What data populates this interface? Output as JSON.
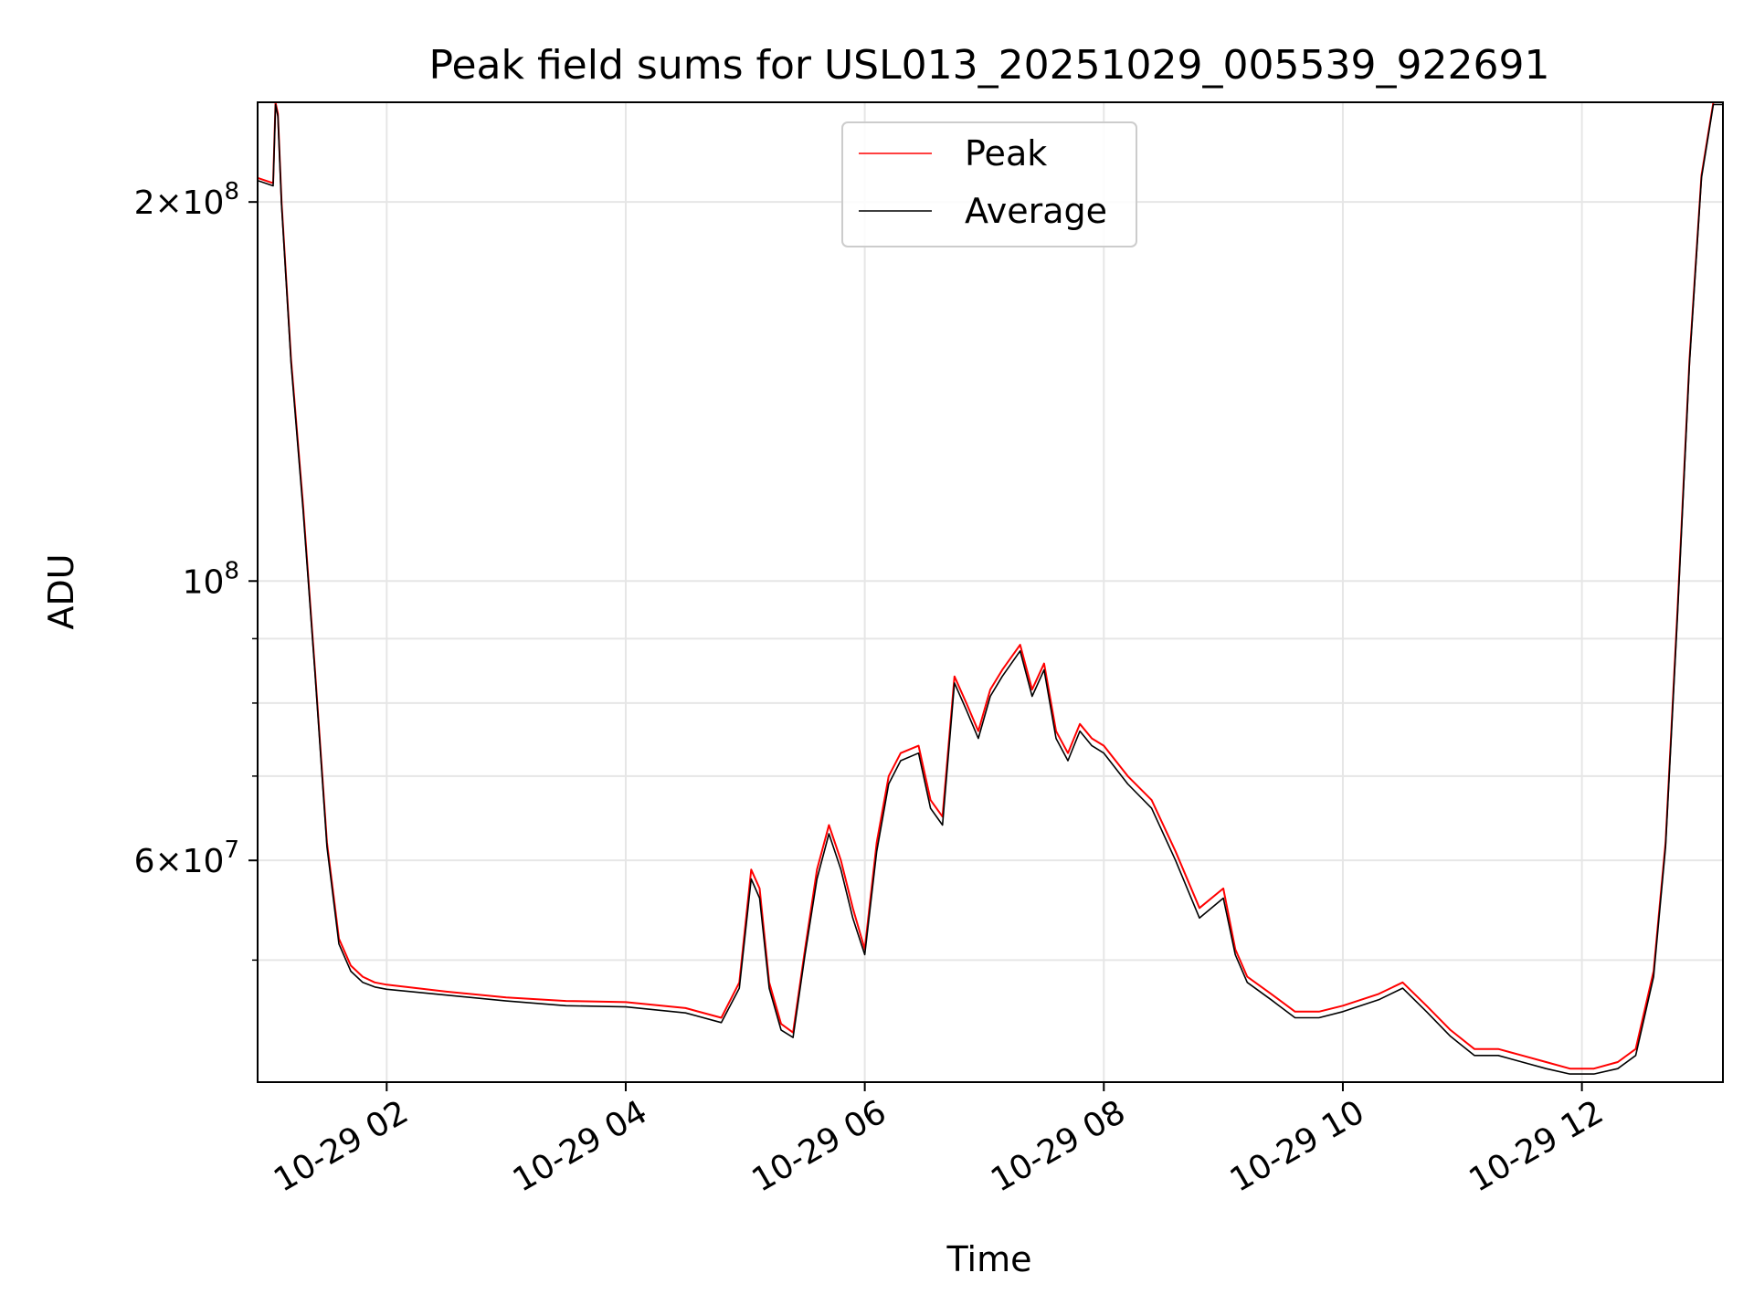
{
  "chart_data": {
    "type": "line",
    "title": "Peak field sums for USL013_20251029_005539_922691",
    "xlabel": "Time",
    "ylabel": "ADU",
    "yscale": "log",
    "grid": true,
    "legend_position": "top-center",
    "xlim_hours": [
      0.92,
      13.18
    ],
    "ylim": [
      40000000,
      240000000
    ],
    "x_ticks": [
      {
        "hour": 2,
        "label": "10-29 02"
      },
      {
        "hour": 4,
        "label": "10-29 04"
      },
      {
        "hour": 6,
        "label": "10-29 06"
      },
      {
        "hour": 8,
        "label": "10-29 08"
      },
      {
        "hour": 10,
        "label": "10-29 10"
      },
      {
        "hour": 12,
        "label": "10-29 12"
      }
    ],
    "y_major_ticks": [
      {
        "value": 60000000,
        "mantissa": "6",
        "exponent": "7"
      },
      {
        "value": 100000000,
        "mantissa": "",
        "exponent": "8"
      },
      {
        "value": 200000000,
        "mantissa": "2",
        "exponent": "8"
      }
    ],
    "y_minor_gridlines": [
      50000000,
      70000000,
      80000000,
      90000000
    ],
    "series": [
      {
        "name": "Peak",
        "color": "#ff0000",
        "x_hours": [
          0.92,
          1.05,
          1.07,
          1.09,
          1.12,
          1.2,
          1.3,
          1.4,
          1.5,
          1.6,
          1.7,
          1.8,
          1.9,
          2.0,
          2.5,
          3.0,
          3.5,
          4.0,
          4.5,
          4.8,
          4.95,
          5.05,
          5.12,
          5.2,
          5.3,
          5.4,
          5.5,
          5.6,
          5.7,
          5.8,
          5.9,
          6.0,
          6.1,
          6.2,
          6.3,
          6.45,
          6.55,
          6.65,
          6.75,
          6.85,
          6.95,
          7.05,
          7.15,
          7.3,
          7.4,
          7.5,
          7.6,
          7.7,
          7.8,
          7.9,
          8.0,
          8.2,
          8.4,
          8.6,
          8.8,
          9.0,
          9.1,
          9.2,
          9.4,
          9.6,
          9.8,
          10.0,
          10.3,
          10.5,
          10.7,
          10.9,
          11.1,
          11.3,
          11.5,
          11.7,
          11.9,
          12.1,
          12.3,
          12.45,
          12.6,
          12.7,
          12.8,
          12.9,
          13.0,
          13.1,
          13.18
        ],
        "values": [
          209000000,
          207000000,
          240000000,
          235000000,
          200000000,
          150000000,
          115000000,
          85000000,
          62000000,
          52000000,
          49500000,
          48500000,
          48000000,
          47800000,
          47200000,
          46700000,
          46400000,
          46300000,
          45800000,
          45000000,
          48000000,
          59000000,
          57000000,
          48000000,
          44500000,
          43800000,
          51000000,
          59000000,
          64000000,
          60000000,
          55000000,
          51000000,
          62000000,
          70000000,
          73000000,
          74000000,
          67000000,
          65000000,
          84000000,
          80000000,
          76000000,
          82000000,
          85000000,
          89000000,
          82000000,
          86000000,
          76000000,
          73000000,
          77000000,
          75000000,
          74000000,
          70000000,
          67000000,
          61000000,
          55000000,
          57000000,
          51000000,
          48500000,
          47000000,
          45500000,
          45500000,
          46000000,
          47000000,
          48000000,
          46000000,
          44000000,
          42500000,
          42500000,
          42000000,
          41500000,
          41000000,
          41000000,
          41500000,
          42500000,
          49000000,
          62000000,
          95000000,
          150000000,
          210000000,
          240000000,
          240000000
        ]
      },
      {
        "name": "Average",
        "color": "#000000",
        "x_hours": [
          0.92,
          1.05,
          1.07,
          1.09,
          1.12,
          1.2,
          1.3,
          1.4,
          1.5,
          1.6,
          1.7,
          1.8,
          1.9,
          2.0,
          2.5,
          3.0,
          3.5,
          4.0,
          4.5,
          4.8,
          4.95,
          5.05,
          5.12,
          5.2,
          5.3,
          5.4,
          5.5,
          5.6,
          5.7,
          5.8,
          5.9,
          6.0,
          6.1,
          6.2,
          6.3,
          6.45,
          6.55,
          6.65,
          6.75,
          6.85,
          6.95,
          7.05,
          7.15,
          7.3,
          7.4,
          7.5,
          7.6,
          7.7,
          7.8,
          7.9,
          8.0,
          8.2,
          8.4,
          8.6,
          8.8,
          9.0,
          9.1,
          9.2,
          9.4,
          9.6,
          9.8,
          10.0,
          10.3,
          10.5,
          10.7,
          10.9,
          11.1,
          11.3,
          11.5,
          11.7,
          11.9,
          12.1,
          12.3,
          12.45,
          12.6,
          12.7,
          12.8,
          12.9,
          13.0,
          13.1,
          13.18
        ],
        "values": [
          208000000,
          206000000,
          239000000,
          234000000,
          199000000,
          149000000,
          114000000,
          84500000,
          61500000,
          51500000,
          49000000,
          48000000,
          47600000,
          47400000,
          46900000,
          46400000,
          46000000,
          45900000,
          45400000,
          44600000,
          47500000,
          58000000,
          56000000,
          47500000,
          44000000,
          43400000,
          50500000,
          58000000,
          63000000,
          59000000,
          54000000,
          50500000,
          61000000,
          69000000,
          72000000,
          73000000,
          66000000,
          64000000,
          83000000,
          79000000,
          75000000,
          81000000,
          84000000,
          88000000,
          81000000,
          85000000,
          75000000,
          72000000,
          76000000,
          74000000,
          73000000,
          69000000,
          66000000,
          60000000,
          54000000,
          56000000,
          50500000,
          48000000,
          46500000,
          45000000,
          45000000,
          45500000,
          46500000,
          47500000,
          45500000,
          43500000,
          42000000,
          42000000,
          41500000,
          41000000,
          40600000,
          40600000,
          41000000,
          42000000,
          48500000,
          61500000,
          94000000,
          149000000,
          209000000,
          239000000,
          239000000
        ]
      }
    ]
  }
}
